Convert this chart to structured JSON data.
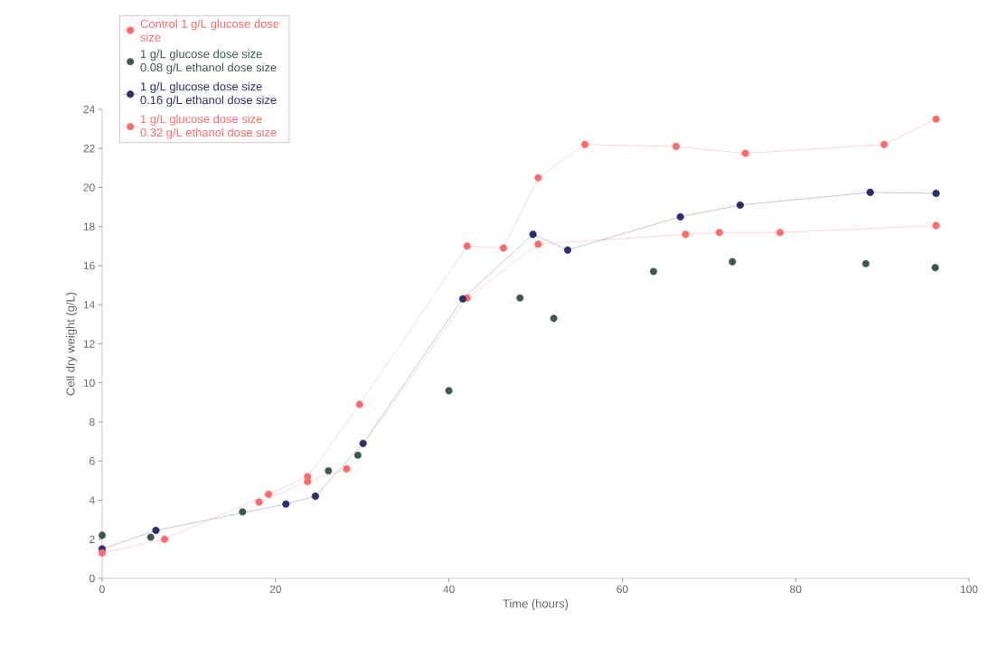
{
  "chart_data": {
    "type": "line",
    "xlabel": "Time (hours)",
    "ylabel": "Cell dry weight (g/L)",
    "xlim": [
      0,
      100
    ],
    "xticks": [
      0,
      20,
      40,
      60,
      80,
      100
    ],
    "ylim": [
      0,
      24
    ],
    "yticks": [
      0,
      2,
      4,
      6,
      8,
      10,
      12,
      14,
      16,
      18,
      20,
      22,
      24
    ],
    "grid": false,
    "legend": "top left",
    "marker": "circle",
    "series": [
      {
        "name": "Control 1 g/L glucose dose size",
        "color": "#ff6b6b",
        "x": [
          18.1,
          23.7,
          28.2,
          42.1,
          50.3,
          67.3,
          71.2,
          78.2,
          96.2
        ],
        "values": [
          3.9,
          4.95,
          5.6,
          14.35,
          17.1,
          17.6,
          17.7,
          17.7,
          18.05
        ]
      },
      {
        "name": "1 g/L glucose dose size 0.08 g/L ethanol dose size",
        "color": "#3d5a48",
        "type": "scatter",
        "x": [
          0,
          5.6,
          16.2,
          26.1,
          29.5,
          40.0,
          48.2,
          52.1,
          63.6,
          72.7,
          88.1,
          96.1
        ],
        "values": [
          2.2,
          2.1,
          3.4,
          5.5,
          6.3,
          9.6,
          14.35,
          13.3,
          15.7,
          16.2,
          16.1,
          15.9
        ]
      },
      {
        "name": "1 g/L glucose dose size 0.16 g/L ethanol dose size",
        "color": "#2a2f6e",
        "x": [
          0,
          6.2,
          21.2,
          24.6,
          30.1,
          41.6,
          49.7,
          53.7,
          66.7,
          73.6,
          88.6,
          96.2
        ],
        "values": [
          1.5,
          2.45,
          3.8,
          4.2,
          6.9,
          14.3,
          17.6,
          16.8,
          18.5,
          19.1,
          19.75,
          19.7
        ]
      },
      {
        "name": "1 g/L glucose dose size 0.32 g/L ethanol dose size",
        "color": "#ff6b6b",
        "x": [
          0,
          7.2,
          19.2,
          23.7,
          29.7,
          42.1,
          46.3,
          50.3,
          55.7,
          66.2,
          74.2,
          90.2,
          96.2
        ],
        "values": [
          1.3,
          2.0,
          4.3,
          5.2,
          8.9,
          17.0,
          16.9,
          20.5,
          22.2,
          22.1,
          21.75,
          22.2,
          23.5
        ]
      }
    ]
  }
}
